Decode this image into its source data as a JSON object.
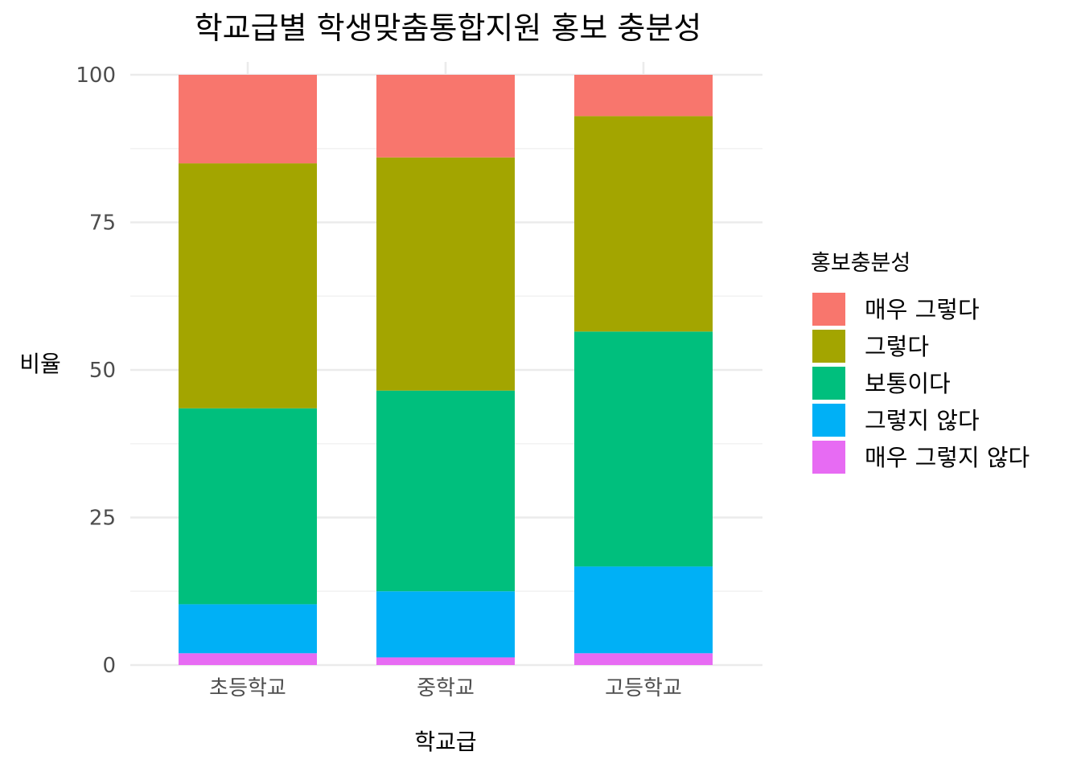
{
  "chart_data": {
    "type": "bar",
    "stacked": true,
    "title": "학교급별 학생맞춤통합지원 홍보 충분성",
    "xlabel": "학교급",
    "ylabel": "비율",
    "categories": [
      "초등학교",
      "중학교",
      "고등학교"
    ],
    "ylim": [
      0,
      100
    ],
    "yticks": [
      "0",
      "25",
      "50",
      "75",
      "100"
    ],
    "grid": true,
    "legend": {
      "title": "홍보충분성",
      "position": "right"
    },
    "series": [
      {
        "name": "매우 그렇다",
        "color": "#F8766D",
        "values": [
          15.0,
          14.0,
          7.0
        ]
      },
      {
        "name": "그렇다",
        "color": "#A3A500",
        "values": [
          41.5,
          39.5,
          36.5
        ]
      },
      {
        "name": "보통이다",
        "color": "#00BF7D",
        "values": [
          33.2,
          34.0,
          39.8
        ]
      },
      {
        "name": "그렇지 않다",
        "color": "#00B0F6",
        "values": [
          8.3,
          11.2,
          14.7
        ]
      },
      {
        "name": "매우 그렇지 않다",
        "color": "#E76BF3",
        "values": [
          2.0,
          1.3,
          2.0
        ]
      }
    ]
  }
}
